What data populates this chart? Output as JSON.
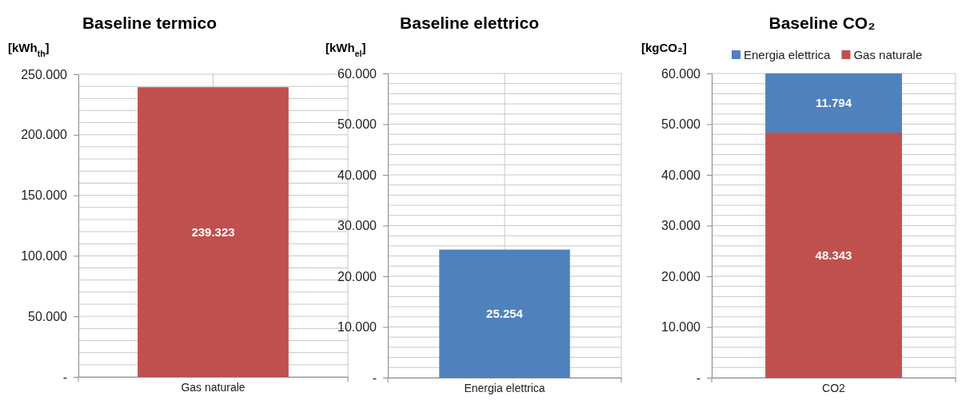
{
  "chart_data": [
    {
      "type": "bar",
      "title": "Baseline termico",
      "ylabel": "[kWh$_{th}$]",
      "categories": [
        "Gas naturale"
      ],
      "series": [
        {
          "color": "#c0504d",
          "values": [
            239323
          ],
          "value_labels": [
            "239.323"
          ]
        }
      ],
      "ylim": [
        0,
        250000
      ],
      "yticks": [
        {
          "value": 0,
          "label": "-"
        },
        {
          "value": 10000,
          "label": null
        },
        {
          "value": 20000,
          "label": null
        },
        {
          "value": 30000,
          "label": null
        },
        {
          "value": 40000,
          "label": null
        },
        {
          "value": 50000,
          "label": "50.000"
        },
        {
          "value": 60000,
          "label": null
        },
        {
          "value": 70000,
          "label": null
        },
        {
          "value": 80000,
          "label": null
        },
        {
          "value": 90000,
          "label": null
        },
        {
          "value": 100000,
          "label": "100.000"
        },
        {
          "value": 110000,
          "label": null
        },
        {
          "value": 120000,
          "label": null
        },
        {
          "value": 130000,
          "label": null
        },
        {
          "value": 140000,
          "label": null
        },
        {
          "value": 150000,
          "label": "150.000"
        },
        {
          "value": 160000,
          "label": null
        },
        {
          "value": 170000,
          "label": null
        },
        {
          "value": 180000,
          "label": null
        },
        {
          "value": 190000,
          "label": null
        },
        {
          "value": 200000,
          "label": "200.000"
        },
        {
          "value": 210000,
          "label": null
        },
        {
          "value": 220000,
          "label": null
        },
        {
          "value": 230000,
          "label": null
        },
        {
          "value": 240000,
          "label": null
        },
        {
          "value": 250000,
          "label": "250.000"
        }
      ],
      "grid": true
    },
    {
      "type": "bar",
      "title": "Baseline elettrico",
      "ylabel": "[kWh$_{el}$]",
      "categories": [
        "Energia elettrica"
      ],
      "series": [
        {
          "color": "#4f81bd",
          "values": [
            25254
          ],
          "value_labels": [
            "25.254"
          ]
        }
      ],
      "ylim": [
        0,
        60000
      ],
      "yticks": [
        {
          "value": 0,
          "label": "-"
        },
        {
          "value": 2000,
          "label": null
        },
        {
          "value": 4000,
          "label": null
        },
        {
          "value": 6000,
          "label": null
        },
        {
          "value": 8000,
          "label": null
        },
        {
          "value": 10000,
          "label": "10.000"
        },
        {
          "value": 12000,
          "label": null
        },
        {
          "value": 14000,
          "label": null
        },
        {
          "value": 16000,
          "label": null
        },
        {
          "value": 18000,
          "label": null
        },
        {
          "value": 20000,
          "label": "20.000"
        },
        {
          "value": 22000,
          "label": null
        },
        {
          "value": 24000,
          "label": null
        },
        {
          "value": 26000,
          "label": null
        },
        {
          "value": 28000,
          "label": null
        },
        {
          "value": 30000,
          "label": "30.000"
        },
        {
          "value": 32000,
          "label": null
        },
        {
          "value": 34000,
          "label": null
        },
        {
          "value": 36000,
          "label": null
        },
        {
          "value": 38000,
          "label": null
        },
        {
          "value": 40000,
          "label": "40.000"
        },
        {
          "value": 42000,
          "label": null
        },
        {
          "value": 44000,
          "label": null
        },
        {
          "value": 46000,
          "label": null
        },
        {
          "value": 48000,
          "label": null
        },
        {
          "value": 50000,
          "label": "50.000"
        },
        {
          "value": 52000,
          "label": null
        },
        {
          "value": 54000,
          "label": null
        },
        {
          "value": 56000,
          "label": null
        },
        {
          "value": 58000,
          "label": null
        },
        {
          "value": 60000,
          "label": "60.000"
        }
      ],
      "grid": true
    },
    {
      "type": "bar",
      "title": "Baseline CO₂",
      "ylabel": "[kgCO₂]",
      "categories": [
        "CO2"
      ],
      "stacked": true,
      "legend": "top",
      "series": [
        {
          "name": "Gas naturale",
          "color": "#c0504d",
          "values": [
            48343
          ],
          "value_labels": [
            "48.343"
          ]
        },
        {
          "name": "Energia elettrica",
          "color": "#4f81bd",
          "values": [
            11794
          ],
          "value_labels": [
            "11.794"
          ]
        }
      ],
      "ylim": [
        0,
        60000
      ],
      "yticks": [
        {
          "value": 0,
          "label": "-"
        },
        {
          "value": 2000,
          "label": null
        },
        {
          "value": 4000,
          "label": null
        },
        {
          "value": 6000,
          "label": null
        },
        {
          "value": 8000,
          "label": null
        },
        {
          "value": 10000,
          "label": "10.000"
        },
        {
          "value": 12000,
          "label": null
        },
        {
          "value": 14000,
          "label": null
        },
        {
          "value": 16000,
          "label": null
        },
        {
          "value": 18000,
          "label": null
        },
        {
          "value": 20000,
          "label": "20.000"
        },
        {
          "value": 22000,
          "label": null
        },
        {
          "value": 24000,
          "label": null
        },
        {
          "value": 26000,
          "label": null
        },
        {
          "value": 28000,
          "label": null
        },
        {
          "value": 30000,
          "label": "30.000"
        },
        {
          "value": 32000,
          "label": null
        },
        {
          "value": 34000,
          "label": null
        },
        {
          "value": 36000,
          "label": null
        },
        {
          "value": 38000,
          "label": null
        },
        {
          "value": 40000,
          "label": "40.000"
        },
        {
          "value": 42000,
          "label": null
        },
        {
          "value": 44000,
          "label": null
        },
        {
          "value": 46000,
          "label": null
        },
        {
          "value": 48000,
          "label": null
        },
        {
          "value": 50000,
          "label": "50.000"
        },
        {
          "value": 52000,
          "label": null
        },
        {
          "value": 54000,
          "label": null
        },
        {
          "value": 56000,
          "label": null
        },
        {
          "value": 58000,
          "label": null
        },
        {
          "value": 60000,
          "label": "60.000"
        }
      ],
      "grid": true
    }
  ]
}
